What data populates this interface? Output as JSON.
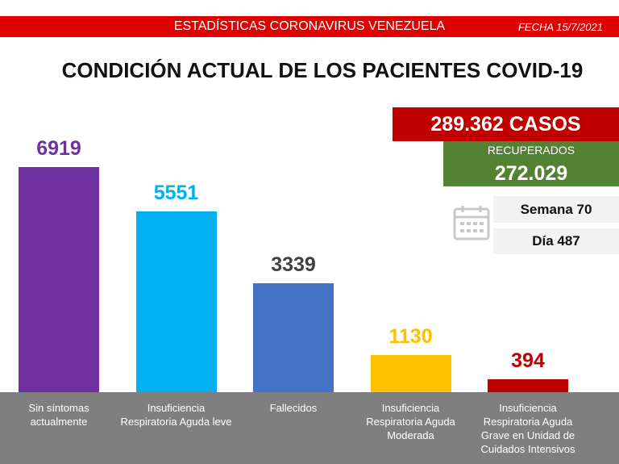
{
  "header": {
    "title": "ESTADÍSTICAS CORONAVIRUS VENEZUELA",
    "date": "FECHA 15/7/2021"
  },
  "stats": {
    "cases": "289.362 CASOS",
    "recovered_label": "RECUPERADOS",
    "recovered": "272.029",
    "week": "Semana 70",
    "day": "Día 487"
  },
  "chart_data": {
    "type": "bar",
    "title": "CONDICIÓN ACTUAL DE LOS PACIENTES COVID-19",
    "categories": [
      "Sin síntomas actualmente",
      "Insuficiencia Respiratoria Aguda leve",
      "Fallecidos",
      "Insuficiencia Respiratoria Aguda Moderada",
      "Insuficiencia Respiratoria Aguda Grave en Unidad de Cuidados Intensivos"
    ],
    "values": [
      6919,
      5551,
      3339,
      1130,
      394
    ],
    "colors": [
      "#7030a0",
      "#00b0f0",
      "#4472c4",
      "#ffc000",
      "#c00000"
    ],
    "label_colors": [
      "#7030a0",
      "#00b0f0",
      "#404040",
      "#ffc000",
      "#c00000"
    ]
  }
}
